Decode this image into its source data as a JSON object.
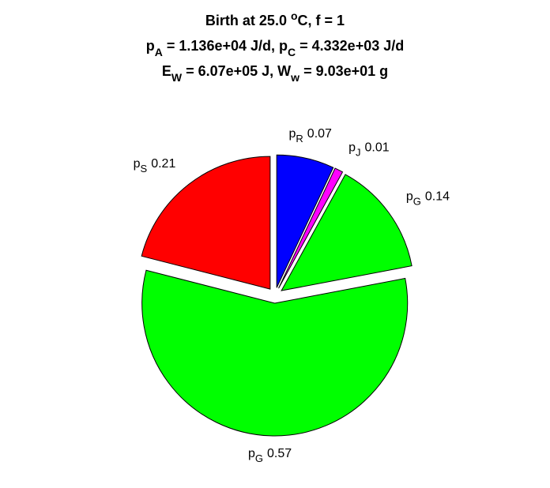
{
  "chart_data": {
    "type": "pie",
    "title": [
      [
        {
          "text": "Birth at 25.0 "
        },
        {
          "text": "o",
          "shift": "super"
        },
        {
          "text": "C, f = 1"
        }
      ],
      [
        {
          "text": "p"
        },
        {
          "text": "A",
          "shift": "sub"
        },
        {
          "text": " = 1.136e+04 J/d, p"
        },
        {
          "text": "C",
          "shift": "sub"
        },
        {
          "text": " = 4.332e+03 J/d"
        }
      ],
      [
        {
          "text": "E"
        },
        {
          "text": "W",
          "shift": "sub"
        },
        {
          "text": " = 6.07e+05 J, W"
        },
        {
          "text": "w",
          "shift": "sub"
        },
        {
          "text": " = 9.03e+01 g"
        }
      ]
    ],
    "categories": [
      {
        "name": "p",
        "sub": "R"
      },
      {
        "name": "p",
        "sub": "J"
      },
      {
        "name": "p",
        "sub": "G"
      },
      {
        "name": "p",
        "sub": "G"
      },
      {
        "name": "p",
        "sub": "S"
      }
    ],
    "values": [
      0.07,
      0.01,
      0.14,
      0.57,
      0.21
    ],
    "colors": [
      "#0000ff",
      "#ff00ff",
      "#00ff00",
      "#00ff00",
      "#ff0000"
    ],
    "exploded": true
  }
}
